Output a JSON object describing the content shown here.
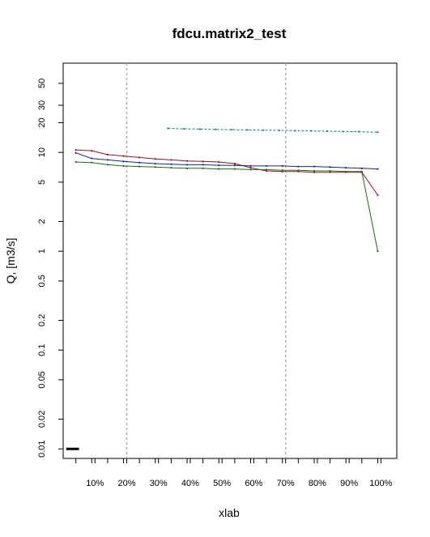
{
  "chart_data": {
    "type": "line",
    "title": "fdcu.matrix2_test",
    "xlabel": "xlab",
    "ylabel": "Q, [m3/s]",
    "yscale": "log",
    "ylim": [
      0.008,
      80
    ],
    "xlim": [
      0.0,
      1.05
    ],
    "x_tick_labels": [
      "10%",
      "20%",
      "30%",
      "40%",
      "50%",
      "60%",
      "70%",
      "80%",
      "90%",
      "100%"
    ],
    "x_tick_values": [
      0.1,
      0.2,
      0.3,
      0.4,
      0.5,
      0.6,
      0.7,
      0.8,
      0.9,
      1.0
    ],
    "x_minor_ticks": [
      0.04,
      0.09,
      0.14,
      0.19,
      0.24,
      0.29,
      0.34,
      0.39,
      0.44,
      0.49,
      0.54,
      0.59,
      0.64,
      0.69,
      0.74,
      0.79,
      0.84,
      0.89,
      0.94,
      0.99
    ],
    "y_tick_labels": [
      "0.01",
      "0.02",
      "0.05",
      "0.1",
      "0.2",
      "0.5",
      "1",
      "2",
      "5",
      "10",
      "20",
      "30",
      "50"
    ],
    "y_tick_values": [
      0.01,
      0.02,
      0.05,
      0.1,
      0.2,
      0.5,
      1,
      2,
      5,
      10,
      20,
      30,
      50
    ],
    "vlines": [
      0.2,
      0.7
    ],
    "series": [
      {
        "color": "#8b1a1a",
        "x": [
          0.04,
          0.09,
          0.14,
          0.19,
          0.24,
          0.29,
          0.34,
          0.39,
          0.44,
          0.49,
          0.54,
          0.59,
          0.64,
          0.69,
          0.74,
          0.79,
          0.84,
          0.89,
          0.94,
          0.99
        ],
        "y": [
          10.6,
          10.4,
          9.5,
          9.2,
          8.9,
          8.6,
          8.4,
          8.2,
          8.1,
          8.0,
          7.7,
          7.0,
          6.5,
          6.4,
          6.4,
          6.3,
          6.3,
          6.3,
          6.3,
          3.7
        ]
      },
      {
        "color": "#1f1f8f",
        "x": [
          0.04,
          0.09,
          0.14,
          0.19,
          0.24,
          0.29,
          0.34,
          0.39,
          0.44,
          0.49,
          0.54,
          0.59,
          0.64,
          0.69,
          0.74,
          0.79,
          0.84,
          0.89,
          0.94,
          0.99
        ],
        "y": [
          9.9,
          8.7,
          8.4,
          8.1,
          7.9,
          7.7,
          7.6,
          7.5,
          7.5,
          7.4,
          7.4,
          7.3,
          7.3,
          7.3,
          7.2,
          7.2,
          7.1,
          7.0,
          6.9,
          6.8
        ]
      },
      {
        "color": "#1a6b1a",
        "x": [
          0.04,
          0.09,
          0.14,
          0.19,
          0.24,
          0.29,
          0.34,
          0.39,
          0.44,
          0.49,
          0.54,
          0.59,
          0.64,
          0.69,
          0.74,
          0.79,
          0.84,
          0.89,
          0.94,
          0.99
        ],
        "y": [
          8.0,
          7.9,
          7.5,
          7.3,
          7.2,
          7.1,
          7.0,
          6.9,
          6.9,
          6.8,
          6.8,
          6.7,
          6.7,
          6.6,
          6.6,
          6.5,
          6.5,
          6.4,
          6.4,
          1.0
        ]
      },
      {
        "color": "#1a7a7a",
        "dashed": true,
        "x": [
          0.33,
          0.38,
          0.43,
          0.48,
          0.53,
          0.58,
          0.63,
          0.68,
          0.73,
          0.78,
          0.83,
          0.88,
          0.93,
          0.99
        ],
        "y": [
          17.5,
          17.3,
          17.2,
          17.1,
          17.0,
          16.9,
          16.8,
          16.7,
          16.6,
          16.5,
          16.4,
          16.3,
          16.2,
          16.0
        ]
      },
      {
        "color": "#000000",
        "thick": true,
        "x": [
          0.01,
          0.05
        ],
        "y": [
          0.01,
          0.01
        ]
      }
    ]
  }
}
